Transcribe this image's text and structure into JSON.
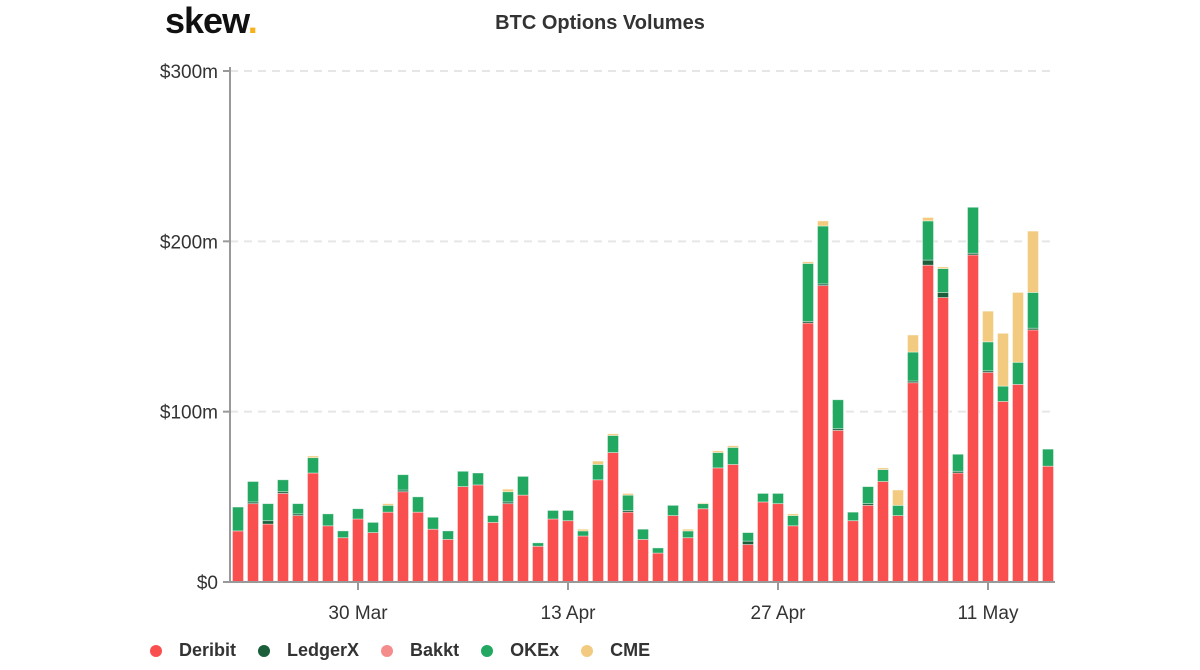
{
  "logo": {
    "text": "skew",
    "dot": "."
  },
  "chart_data": {
    "type": "bar",
    "stacked": true,
    "title": "BTC Options Volumes",
    "xlabel": "",
    "ylabel": "",
    "ylim": [
      0,
      300
    ],
    "yticks": [
      {
        "v": 0,
        "label": "$0"
      },
      {
        "v": 100,
        "label": "$100m"
      },
      {
        "v": 200,
        "label": "$200m"
      },
      {
        "v": 300,
        "label": "$300m"
      }
    ],
    "xticks": [
      {
        "i": 8,
        "label": "30 Mar"
      },
      {
        "i": 22,
        "label": "13 Apr"
      },
      {
        "i": 36,
        "label": "27 Apr"
      },
      {
        "i": 50,
        "label": "11 May"
      }
    ],
    "categories": [
      "22 Mar",
      "23 Mar",
      "24 Mar",
      "25 Mar",
      "26 Mar",
      "27 Mar",
      "28 Mar",
      "29 Mar",
      "30 Mar",
      "31 Mar",
      "1 Apr",
      "2 Apr",
      "3 Apr",
      "4 Apr",
      "5 Apr",
      "6 Apr",
      "7 Apr",
      "8 Apr",
      "9 Apr",
      "10 Apr",
      "11 Apr",
      "12 Apr",
      "13 Apr",
      "14 Apr",
      "15 Apr",
      "16 Apr",
      "17 Apr",
      "18 Apr",
      "19 Apr",
      "20 Apr",
      "21 Apr",
      "22 Apr",
      "23 Apr",
      "24 Apr",
      "25 Apr",
      "26 Apr",
      "27 Apr",
      "28 Apr",
      "29 Apr",
      "30 Apr",
      "1 May",
      "2 May",
      "3 May",
      "4 May",
      "5 May",
      "6 May",
      "7 May",
      "8 May",
      "9 May",
      "10 May",
      "11 May",
      "12 May",
      "13 May",
      "14 May",
      "15 May"
    ],
    "series": [
      {
        "name": "Deribit",
        "color": "#f94f4f",
        "values": [
          30,
          46,
          34,
          52,
          39,
          64,
          33,
          26,
          37,
          29,
          41,
          53,
          41,
          31,
          25,
          56,
          57,
          35,
          46,
          51,
          21,
          37,
          36,
          27,
          60,
          76,
          41,
          25,
          17,
          39,
          26,
          43,
          67,
          69,
          22,
          47,
          46,
          33,
          152,
          174,
          89,
          36,
          45,
          59,
          39,
          117,
          186,
          167,
          64,
          192,
          123,
          106,
          116,
          148,
          68
        ]
      },
      {
        "name": "LedgerX",
        "color": "#1a5e3a",
        "values": [
          0,
          1,
          2,
          1,
          1,
          0,
          0,
          0,
          0,
          0,
          0,
          1,
          0,
          0,
          0,
          0,
          0,
          0,
          1,
          0,
          0,
          0,
          0,
          0,
          0,
          0,
          1,
          0,
          0,
          0,
          0,
          0,
          0,
          0,
          2,
          0,
          0,
          0,
          1,
          1,
          1,
          0,
          1,
          0,
          0,
          1,
          3,
          3,
          1,
          1,
          1,
          0,
          0,
          1,
          0
        ]
      },
      {
        "name": "Bakkt",
        "color": "#f58c8c",
        "values": [
          0,
          0,
          0,
          0,
          0,
          0,
          0,
          0,
          0,
          0,
          0,
          0,
          0,
          0,
          0,
          0,
          0,
          0,
          0,
          0,
          0,
          0,
          0,
          0,
          0,
          0,
          0,
          0,
          0,
          0,
          0,
          0,
          0,
          0,
          0,
          0,
          0,
          0,
          0,
          0,
          0,
          0,
          0,
          0,
          0,
          0,
          0,
          0,
          0,
          0,
          0,
          0,
          0,
          0,
          0
        ]
      },
      {
        "name": "OKEx",
        "color": "#23a862",
        "values": [
          14,
          12,
          10,
          7,
          6,
          9,
          7,
          4,
          6,
          6,
          4,
          9,
          9,
          7,
          5,
          9,
          7,
          4,
          6,
          11,
          2,
          5,
          6,
          3,
          9,
          10,
          9,
          6,
          3,
          6,
          4,
          3,
          9,
          10,
          5,
          5,
          6,
          6,
          34,
          34,
          17,
          5,
          10,
          7,
          6,
          17,
          23,
          14,
          10,
          27,
          17,
          9,
          13,
          21,
          10
        ]
      },
      {
        "name": "CME",
        "color": "#f2cb80",
        "values": [
          0,
          0,
          0,
          0,
          0,
          1,
          0,
          0,
          0,
          0,
          1,
          0,
          0,
          0,
          0,
          0,
          0,
          0,
          1.5,
          0,
          0,
          0,
          0,
          1,
          2,
          1,
          1,
          0,
          0,
          0,
          1,
          0.5,
          1,
          1,
          0,
          0,
          0,
          1,
          1,
          3,
          0,
          0,
          0,
          1,
          9,
          10,
          2,
          1,
          0,
          0,
          18,
          31,
          41,
          36,
          0
        ]
      }
    ],
    "legend": "bottom-left",
    "grid": true
  }
}
